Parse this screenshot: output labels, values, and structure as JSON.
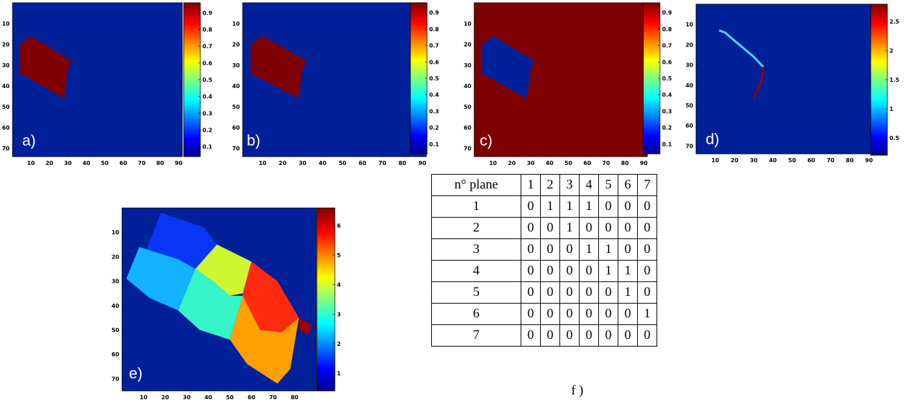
{
  "panels": [
    {
      "id": "a",
      "label": "a)",
      "y_ticks": [
        "10",
        "20",
        "30",
        "40",
        "50",
        "60",
        "70"
      ],
      "x_ticks": [
        "10",
        "20",
        "30",
        "40",
        "50",
        "60",
        "70",
        "80",
        "90"
      ],
      "cb_ticks": [
        "0.9",
        "0.8",
        "0.7",
        "0.6",
        "0.5",
        "0.4",
        "0.3",
        "0.2",
        "0.1"
      ]
    },
    {
      "id": "b",
      "label": "b)",
      "y_ticks": [
        "10",
        "20",
        "30",
        "40",
        "50",
        "60",
        "70"
      ],
      "x_ticks": [
        "10",
        "20",
        "30",
        "40",
        "50",
        "60",
        "70",
        "80",
        "90"
      ],
      "cb_ticks": [
        "0.9",
        "0.8",
        "0.7",
        "0.6",
        "0.5",
        "0.4",
        "0.3",
        "0.2",
        "0.1"
      ]
    },
    {
      "id": "c",
      "label": "c)",
      "y_ticks": [
        "10",
        "20",
        "30",
        "40",
        "50",
        "60",
        "70"
      ],
      "x_ticks": [
        "10",
        "20",
        "30",
        "40",
        "50",
        "60",
        "70",
        "80",
        "90"
      ],
      "cb_ticks": [
        "0.9",
        "0.8",
        "0.7",
        "0.6",
        "0.5",
        "0.4",
        "0.3",
        "0.2",
        "0.1"
      ]
    },
    {
      "id": "d",
      "label": "d)",
      "y_ticks": [
        "10",
        "20",
        "30",
        "40",
        "50",
        "60",
        "70"
      ],
      "x_ticks": [
        "10",
        "20",
        "30",
        "40",
        "50",
        "60",
        "70",
        "80",
        "90"
      ],
      "cb_ticks": [
        "2.5",
        "2",
        "1.5",
        "1",
        "0.5"
      ]
    },
    {
      "id": "e",
      "label": "e)",
      "y_ticks": [
        "10",
        "20",
        "30",
        "40",
        "50",
        "60",
        "70"
      ],
      "x_ticks": [
        "10",
        "20",
        "30",
        "40",
        "50",
        "60",
        "70",
        "80"
      ],
      "cb_ticks": [
        "6",
        "5",
        "4",
        "3",
        "2",
        "1"
      ]
    }
  ],
  "table": {
    "header": [
      "n° plane",
      "1",
      "2",
      "3",
      "4",
      "5",
      "6",
      "7"
    ],
    "rows": [
      [
        "1",
        "0",
        "1",
        "1",
        "1",
        "0",
        "0",
        "0"
      ],
      [
        "2",
        "0",
        "0",
        "1",
        "0",
        "0",
        "0",
        "0"
      ],
      [
        "3",
        "0",
        "0",
        "0",
        "1",
        "1",
        "0",
        "0"
      ],
      [
        "4",
        "0",
        "0",
        "0",
        "0",
        "1",
        "1",
        "0"
      ],
      [
        "5",
        "0",
        "0",
        "0",
        "0",
        "0",
        "1",
        "0"
      ],
      [
        "6",
        "0",
        "0",
        "0",
        "0",
        "0",
        "0",
        "1"
      ],
      [
        "7",
        "0",
        "0",
        "0",
        "0",
        "0",
        "0",
        "0"
      ]
    ],
    "caption": "f )"
  },
  "colors": {
    "background": "#00209a",
    "max": "#7f0000"
  }
}
